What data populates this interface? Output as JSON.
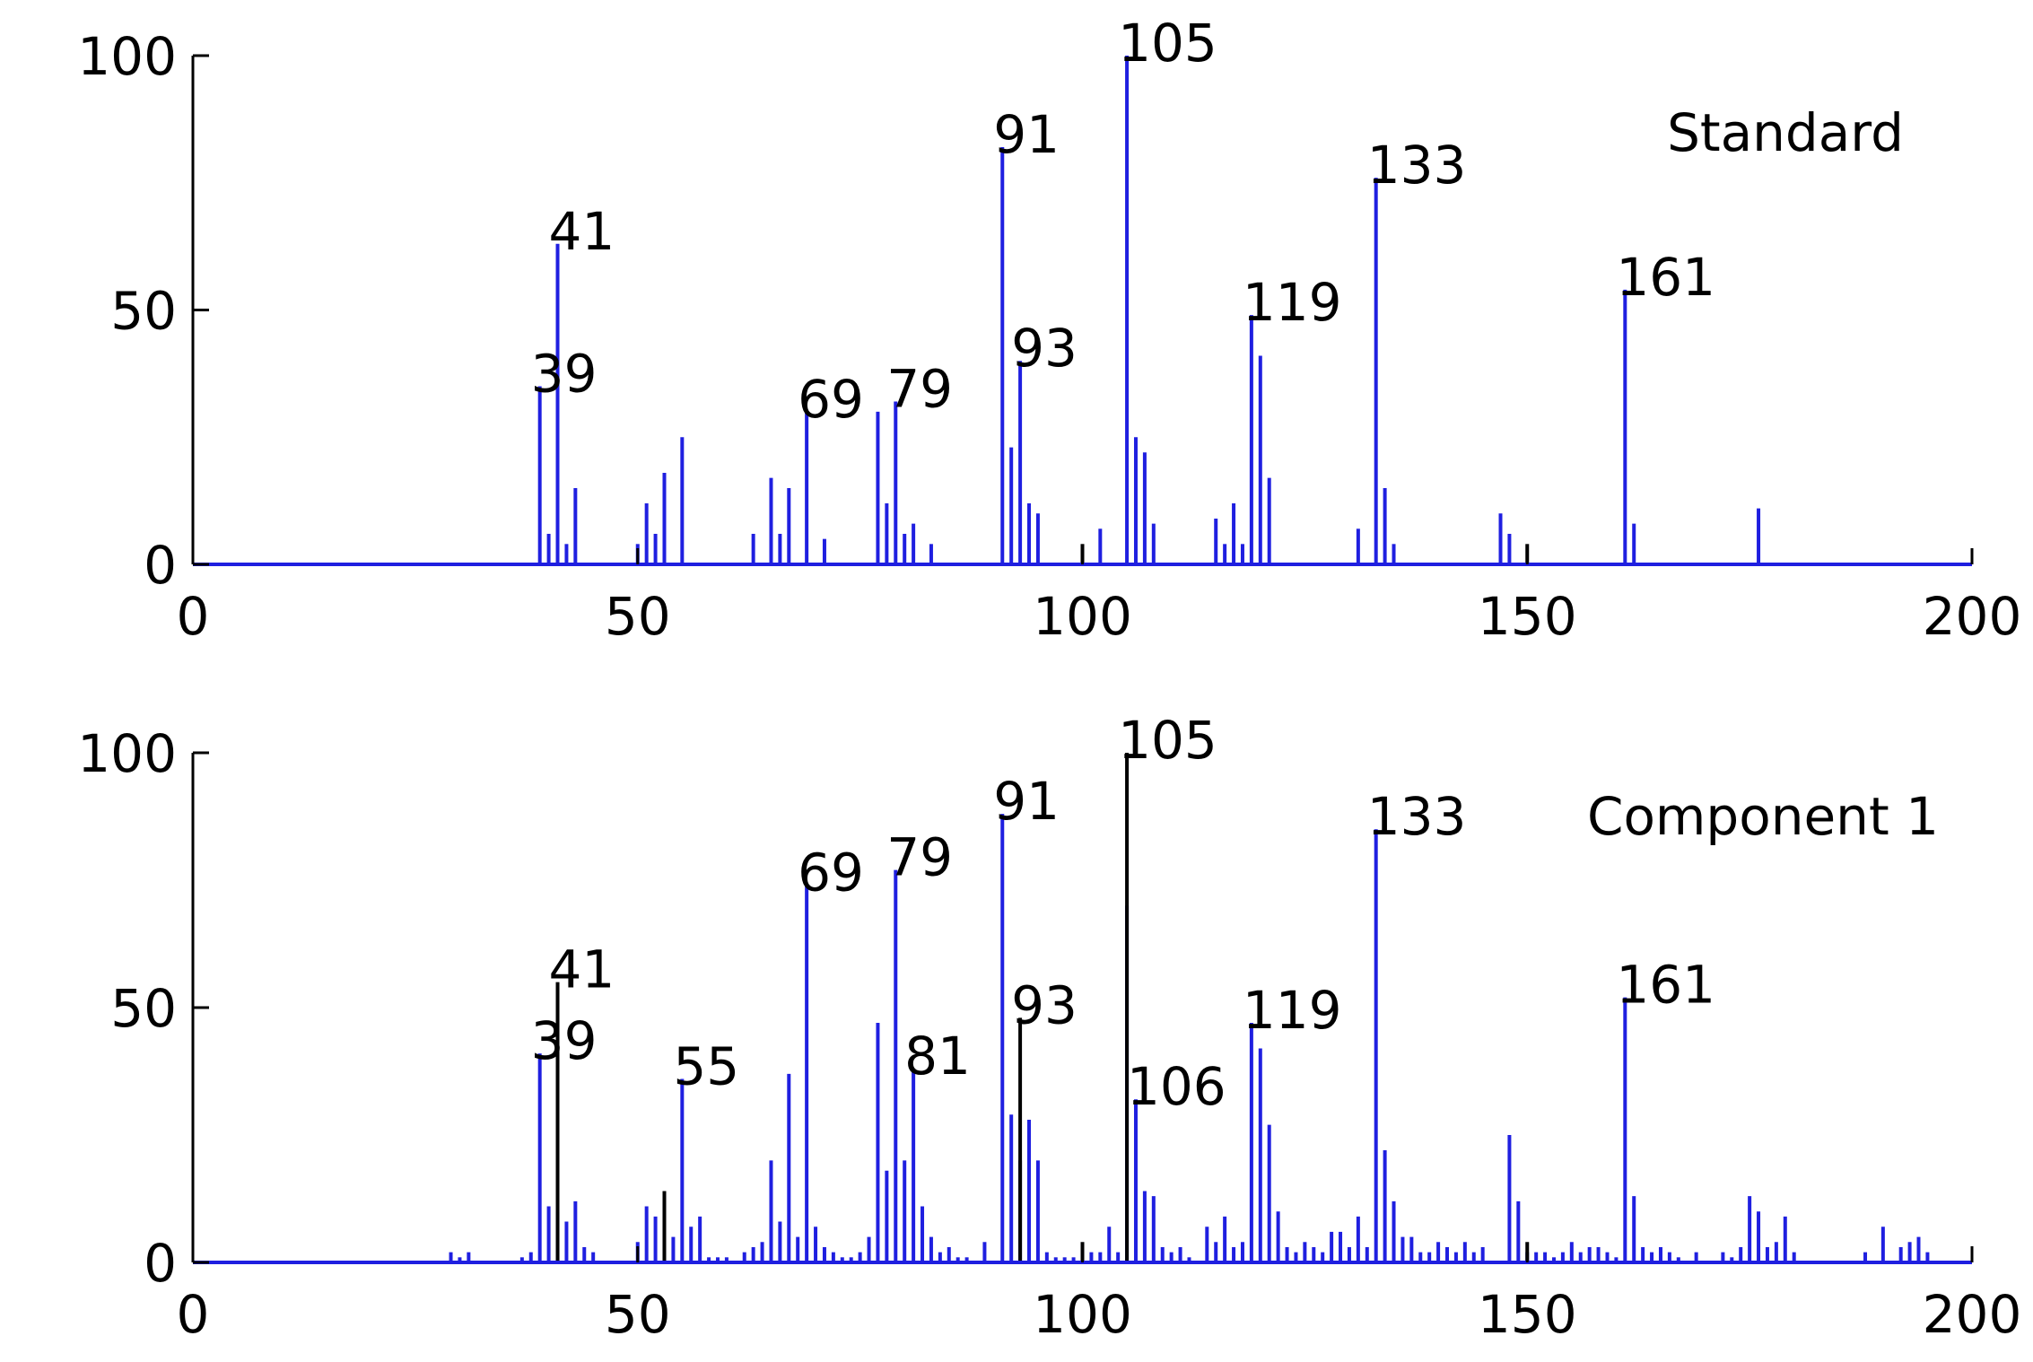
{
  "chart_data": [
    {
      "type": "bar",
      "title": "Standard",
      "xlabel": "",
      "ylabel": "",
      "xlim": [
        0,
        200
      ],
      "ylim": [
        0,
        100
      ],
      "xticks": [
        0,
        50,
        100,
        150,
        200
      ],
      "yticks": [
        0,
        50,
        100
      ],
      "grid": false,
      "bar_color": "#1f1fe0",
      "series": [
        {
          "color": "#1f1fe0",
          "points": [
            [
              39,
              35
            ],
            [
              40,
              6
            ],
            [
              41,
              63
            ],
            [
              42,
              4
            ],
            [
              43,
              15
            ],
            [
              50,
              4
            ],
            [
              51,
              12
            ],
            [
              52,
              6
            ],
            [
              53,
              18
            ],
            [
              55,
              25
            ],
            [
              63,
              6
            ],
            [
              65,
              17
            ],
            [
              66,
              6
            ],
            [
              67,
              15
            ],
            [
              69,
              30
            ],
            [
              71,
              5
            ],
            [
              77,
              30
            ],
            [
              78,
              12
            ],
            [
              79,
              32
            ],
            [
              80,
              6
            ],
            [
              81,
              8
            ],
            [
              83,
              4
            ],
            [
              91,
              82
            ],
            [
              92,
              23
            ],
            [
              93,
              40
            ],
            [
              94,
              12
            ],
            [
              95,
              10
            ],
            [
              102,
              7
            ],
            [
              105,
              100
            ],
            [
              106,
              25
            ],
            [
              107,
              22
            ],
            [
              108,
              8
            ],
            [
              115,
              9
            ],
            [
              116,
              4
            ],
            [
              117,
              12
            ],
            [
              118,
              4
            ],
            [
              119,
              49
            ],
            [
              120,
              41
            ],
            [
              121,
              17
            ],
            [
              131,
              7
            ],
            [
              133,
              76
            ],
            [
              134,
              15
            ],
            [
              135,
              4
            ],
            [
              147,
              10
            ],
            [
              148,
              6
            ],
            [
              161,
              54
            ],
            [
              162,
              8
            ],
            [
              176,
              11
            ]
          ]
        },
        {
          "color": "#000000",
          "points": [
            [
              100,
              4
            ],
            [
              150,
              4
            ]
          ]
        }
      ],
      "annotations": [
        {
          "text": "39",
          "x": 39,
          "y": 35
        },
        {
          "text": "41",
          "x": 41,
          "y": 63
        },
        {
          "text": "69",
          "x": 69,
          "y": 30
        },
        {
          "text": "79",
          "x": 79,
          "y": 32
        },
        {
          "text": "91",
          "x": 91,
          "y": 82
        },
        {
          "text": "93",
          "x": 93,
          "y": 40
        },
        {
          "text": "105",
          "x": 105,
          "y": 100
        },
        {
          "text": "119",
          "x": 119,
          "y": 49
        },
        {
          "text": "133",
          "x": 133,
          "y": 76
        },
        {
          "text": "161",
          "x": 161,
          "y": 54
        }
      ]
    },
    {
      "type": "bar",
      "title": "Component 1",
      "xlabel": "",
      "ylabel": "",
      "xlim": [
        0,
        200
      ],
      "ylim": [
        0,
        100
      ],
      "xticks": [
        0,
        50,
        100,
        150,
        200
      ],
      "yticks": [
        0,
        50,
        100
      ],
      "grid": false,
      "bar_color": "#1f1fe0",
      "series": [
        {
          "color": "#1f1fe0",
          "points": [
            [
              29,
              2
            ],
            [
              30,
              1
            ],
            [
              31,
              2
            ],
            [
              37,
              1
            ],
            [
              38,
              2
            ],
            [
              39,
              41
            ],
            [
              40,
              11
            ],
            [
              41,
              10
            ],
            [
              42,
              8
            ],
            [
              43,
              12
            ],
            [
              44,
              3
            ],
            [
              45,
              2
            ],
            [
              50,
              4
            ],
            [
              51,
              11
            ],
            [
              52,
              9
            ],
            [
              53,
              12
            ],
            [
              54,
              5
            ],
            [
              55,
              36
            ],
            [
              56,
              7
            ],
            [
              57,
              9
            ],
            [
              58,
              1
            ],
            [
              59,
              1
            ],
            [
              60,
              1
            ],
            [
              62,
              2
            ],
            [
              63,
              3
            ],
            [
              64,
              4
            ],
            [
              65,
              20
            ],
            [
              66,
              8
            ],
            [
              67,
              37
            ],
            [
              68,
              5
            ],
            [
              69,
              74
            ],
            [
              70,
              7
            ],
            [
              71,
              3
            ],
            [
              72,
              2
            ],
            [
              73,
              1
            ],
            [
              74,
              1
            ],
            [
              75,
              2
            ],
            [
              76,
              5
            ],
            [
              77,
              47
            ],
            [
              78,
              18
            ],
            [
              79,
              77
            ],
            [
              80,
              20
            ],
            [
              81,
              38
            ],
            [
              82,
              11
            ],
            [
              83,
              5
            ],
            [
              84,
              2
            ],
            [
              85,
              3
            ],
            [
              86,
              1
            ],
            [
              87,
              1
            ],
            [
              89,
              4
            ],
            [
              91,
              88
            ],
            [
              92,
              29
            ],
            [
              93,
              20
            ],
            [
              94,
              28
            ],
            [
              95,
              20
            ],
            [
              96,
              2
            ],
            [
              97,
              1
            ],
            [
              98,
              1
            ],
            [
              99,
              1
            ],
            [
              100,
              1
            ],
            [
              101,
              2
            ],
            [
              102,
              2
            ],
            [
              103,
              7
            ],
            [
              104,
              2
            ],
            [
              105,
              70
            ],
            [
              106,
              32
            ],
            [
              107,
              14
            ],
            [
              108,
              13
            ],
            [
              109,
              3
            ],
            [
              110,
              2
            ],
            [
              111,
              3
            ],
            [
              112,
              1
            ],
            [
              114,
              7
            ],
            [
              115,
              4
            ],
            [
              116,
              9
            ],
            [
              117,
              3
            ],
            [
              118,
              4
            ],
            [
              119,
              47
            ],
            [
              120,
              42
            ],
            [
              121,
              27
            ],
            [
              122,
              10
            ],
            [
              123,
              3
            ],
            [
              124,
              2
            ],
            [
              125,
              4
            ],
            [
              126,
              3
            ],
            [
              127,
              2
            ],
            [
              128,
              6
            ],
            [
              129,
              6
            ],
            [
              130,
              3
            ],
            [
              131,
              9
            ],
            [
              132,
              3
            ],
            [
              133,
              85
            ],
            [
              134,
              22
            ],
            [
              135,
              12
            ],
            [
              136,
              5
            ],
            [
              137,
              5
            ],
            [
              138,
              2
            ],
            [
              139,
              2
            ],
            [
              140,
              4
            ],
            [
              141,
              3
            ],
            [
              142,
              2
            ],
            [
              143,
              4
            ],
            [
              144,
              2
            ],
            [
              145,
              3
            ],
            [
              148,
              25
            ],
            [
              149,
              12
            ],
            [
              150,
              2
            ],
            [
              151,
              2
            ],
            [
              152,
              2
            ],
            [
              153,
              1
            ],
            [
              154,
              2
            ],
            [
              155,
              4
            ],
            [
              156,
              2
            ],
            [
              157,
              3
            ],
            [
              158,
              3
            ],
            [
              159,
              2
            ],
            [
              160,
              1
            ],
            [
              161,
              52
            ],
            [
              162,
              13
            ],
            [
              163,
              3
            ],
            [
              164,
              2
            ],
            [
              165,
              3
            ],
            [
              166,
              2
            ],
            [
              167,
              1
            ],
            [
              169,
              2
            ],
            [
              172,
              2
            ],
            [
              173,
              1
            ],
            [
              174,
              3
            ],
            [
              175,
              13
            ],
            [
              176,
              10
            ],
            [
              177,
              3
            ],
            [
              178,
              4
            ],
            [
              179,
              9
            ],
            [
              180,
              2
            ],
            [
              188,
              2
            ],
            [
              190,
              7
            ],
            [
              192,
              3
            ],
            [
              193,
              4
            ],
            [
              194,
              5
            ],
            [
              195,
              2
            ]
          ]
        },
        {
          "color": "#000000",
          "points": [
            [
              41,
              55
            ],
            [
              53,
              14
            ],
            [
              93,
              48
            ],
            [
              100,
              4
            ],
            [
              105,
              100
            ],
            [
              150,
              4
            ]
          ]
        }
      ],
      "annotations": [
        {
          "text": "39",
          "x": 39,
          "y": 41
        },
        {
          "text": "41",
          "x": 41,
          "y": 55
        },
        {
          "text": "55",
          "x": 55,
          "y": 36
        },
        {
          "text": "69",
          "x": 69,
          "y": 74
        },
        {
          "text": "79",
          "x": 79,
          "y": 77
        },
        {
          "text": "81",
          "x": 81,
          "y": 38
        },
        {
          "text": "91",
          "x": 91,
          "y": 88
        },
        {
          "text": "93",
          "x": 93,
          "y": 48
        },
        {
          "text": "105",
          "x": 105,
          "y": 100
        },
        {
          "text": "106",
          "x": 106,
          "y": 32
        },
        {
          "text": "119",
          "x": 119,
          "y": 47
        },
        {
          "text": "133",
          "x": 133,
          "y": 85
        },
        {
          "text": "161",
          "x": 161,
          "y": 52
        }
      ]
    }
  ]
}
